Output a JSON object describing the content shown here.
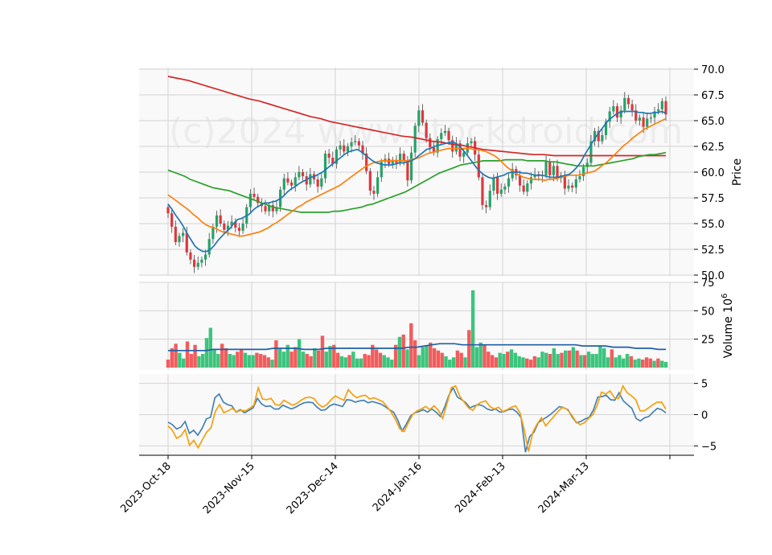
{
  "chart_data": [
    {
      "type": "candlestick",
      "panel": "price",
      "ylabel": "Price",
      "ylim": [
        50,
        70
      ],
      "yticks": [
        "50.0",
        "52.5",
        "55.0",
        "57.5",
        "60.0",
        "62.5",
        "65.0",
        "67.5",
        "70.0"
      ],
      "watermark": "(c)2024 www.stockdroid.com",
      "x_tick_labels": [
        "2023-Oct-18",
        "2023-Nov-15",
        "2023-Dec-14",
        "2024-Jan-16",
        "2024-Feb-13",
        "2024-Mar-13"
      ],
      "grid": true,
      "colors": {
        "up": "#26a269",
        "down": "#e0363d",
        "ma_fast": "#1f77b4",
        "ma_mid": "#ff7f0e",
        "ma_slow": "#2ca02c",
        "ma_long": "#d62728"
      },
      "close": [
        56.0,
        54.7,
        53.2,
        53.8,
        54.1,
        52.2,
        51.5,
        50.8,
        51.2,
        51.5,
        52.0,
        53.5,
        54.7,
        55.8,
        55.0,
        54.4,
        54.8,
        55.2,
        54.6,
        54.3,
        55.0,
        56.6,
        57.9,
        57.6,
        57.0,
        56.7,
        56.2,
        56.8,
        56.2,
        56.6,
        58.3,
        59.4,
        59.0,
        58.7,
        59.5,
        60.0,
        59.6,
        58.8,
        59.8,
        59.3,
        58.6,
        59.4,
        61.8,
        61.4,
        60.8,
        62.2,
        62.6,
        62.0,
        62.5,
        62.9,
        63.0,
        62.6,
        61.8,
        60.1,
        58.2,
        57.9,
        59.5,
        61.0,
        61.3,
        60.8,
        61.2,
        60.9,
        61.8,
        61.1,
        59.2,
        61.9,
        64.5,
        66.0,
        64.8,
        63.3,
        62.4,
        61.9,
        63.2,
        63.8,
        64.0,
        63.1,
        62.0,
        62.8,
        61.5,
        61.9,
        62.8,
        63.0,
        61.7,
        59.5,
        56.8,
        56.6,
        58.2,
        59.5,
        57.9,
        58.3,
        58.6,
        59.4,
        60.3,
        59.7,
        58.7,
        58.1,
        58.9,
        59.5,
        59.8,
        59.6,
        59.7,
        61.0,
        59.7,
        60.6,
        59.4,
        59.7,
        58.4,
        58.7,
        58.5,
        59.3,
        59.6,
        60.5,
        60.9,
        63.0,
        64.0,
        63.0,
        63.6,
        64.9,
        65.9,
        66.4,
        65.3,
        66.0,
        67.2,
        66.6,
        66.0,
        65.0,
        65.3,
        64.4,
        65.2,
        65.3,
        65.9,
        66.1,
        66.9,
        65.6
      ],
      "ma_fast": [
        56.9,
        56.4,
        55.8,
        55.3,
        54.7,
        54.0,
        53.4,
        52.8,
        52.5,
        52.3,
        52.3,
        52.5,
        52.9,
        53.4,
        53.8,
        54.2,
        54.5,
        55.0,
        55.4,
        55.5,
        55.7,
        55.9,
        56.3,
        56.6,
        56.8,
        57.0,
        57.0,
        57.1,
        57.2,
        57.4,
        57.7,
        58.1,
        58.4,
        58.6,
        58.9,
        59.1,
        59.3,
        59.5,
        59.6,
        59.8,
        60.0,
        60.3,
        60.6,
        60.9,
        61.2,
        61.5,
        61.8,
        62.0,
        62.1,
        62.2,
        62.0,
        61.7,
        61.4,
        61.1,
        60.9,
        60.8,
        60.7,
        60.7,
        60.7,
        60.8,
        60.9,
        60.9,
        61.0,
        61.1,
        61.3,
        61.6,
        61.9,
        62.2,
        62.3,
        62.5,
        62.6,
        62.7,
        62.8,
        62.9,
        62.9,
        62.7,
        62.3,
        61.9,
        61.4,
        60.9,
        60.4,
        60.0,
        59.7,
        59.5,
        59.4,
        59.5,
        59.6,
        59.7,
        59.9,
        60.0,
        60.0,
        60.0,
        59.9,
        59.9,
        59.8,
        59.7,
        59.7,
        59.7,
        59.6,
        59.5,
        59.5,
        59.5,
        59.6,
        59.7,
        59.8,
        60.1,
        60.5,
        61.0,
        61.7,
        62.3,
        62.9,
        63.5,
        64.0,
        64.5,
        65.0,
        65.3,
        65.6,
        65.8,
        65.9,
        65.9,
        65.9,
        65.9,
        65.8,
        65.8,
        65.7,
        65.7,
        65.8,
        65.8,
        65.9,
        65.7
      ],
      "ma_mid": [
        57.8,
        57.5,
        57.2,
        56.9,
        56.6,
        56.3,
        55.9,
        55.6,
        55.2,
        54.9,
        54.7,
        54.6,
        54.4,
        54.2,
        54.1,
        54.0,
        53.9,
        53.8,
        53.8,
        53.9,
        54.0,
        54.1,
        54.2,
        54.4,
        54.6,
        54.9,
        55.1,
        55.4,
        55.7,
        56.0,
        56.3,
        56.6,
        56.8,
        57.1,
        57.3,
        57.5,
        57.7,
        57.9,
        58.1,
        58.3,
        58.5,
        58.7,
        59.0,
        59.3,
        59.6,
        59.9,
        60.2,
        60.5,
        60.7,
        60.9,
        61.0,
        61.1,
        61.1,
        61.1,
        61.1,
        61.1,
        61.1,
        61.1,
        61.2,
        61.3,
        61.4,
        61.6,
        61.8,
        61.9,
        62.0,
        62.1,
        62.2,
        62.3,
        62.3,
        62.3,
        62.3,
        62.3,
        62.3,
        62.2,
        62.2,
        62.1,
        62.0,
        61.8,
        61.6,
        61.3,
        60.9,
        60.5,
        60.2,
        59.9,
        59.7,
        59.5,
        59.4,
        59.3,
        59.3,
        59.3,
        59.2,
        59.3,
        59.3,
        59.4,
        59.5,
        59.6,
        59.7,
        59.7,
        59.7,
        59.8,
        59.9,
        60.0,
        60.1,
        60.4,
        60.7,
        61.0,
        61.4,
        61.8,
        62.2,
        62.6,
        62.9,
        63.3,
        63.6,
        63.9,
        64.2,
        64.4,
        64.6,
        64.8,
        65.0,
        65.2
      ],
      "ma_slow": [
        60.2,
        60.0,
        59.8,
        59.6,
        59.3,
        59.1,
        58.9,
        58.7,
        58.5,
        58.4,
        58.3,
        58.2,
        58.0,
        57.8,
        57.6,
        57.4,
        57.2,
        57.0,
        56.8,
        56.6,
        56.5,
        56.4,
        56.3,
        56.2,
        56.1,
        56.1,
        56.1,
        56.1,
        56.1,
        56.1,
        56.2,
        56.2,
        56.3,
        56.4,
        56.5,
        56.6,
        56.8,
        56.9,
        57.1,
        57.3,
        57.5,
        57.7,
        57.9,
        58.1,
        58.4,
        58.7,
        59.0,
        59.3,
        59.6,
        59.9,
        60.1,
        60.3,
        60.5,
        60.7,
        60.8,
        60.9,
        61.0,
        61.1,
        61.1,
        61.1,
        61.1,
        61.2,
        61.2,
        61.2,
        61.2,
        61.1,
        61.1,
        61.1,
        61.1,
        61.0,
        61.0,
        60.9,
        60.8,
        60.7,
        60.6,
        60.6,
        60.6,
        60.6,
        60.7,
        60.8,
        60.9,
        61.0,
        61.1,
        61.2,
        61.3,
        61.5,
        61.6,
        61.7,
        61.7,
        61.8,
        61.9
      ],
      "ma_long": [
        69.3,
        69.1,
        68.9,
        68.6,
        68.3,
        68.0,
        67.7,
        67.4,
        67.1,
        66.9,
        66.6,
        66.3,
        66.0,
        65.7,
        65.4,
        65.2,
        64.9,
        64.7,
        64.5,
        64.3,
        64.1,
        63.9,
        63.7,
        63.5,
        63.4,
        63.2,
        63.0,
        62.9,
        62.7,
        62.6,
        62.4,
        62.2,
        62.1,
        62.0,
        61.9,
        61.8,
        61.7,
        61.7,
        61.6,
        61.6,
        61.6,
        61.6,
        61.6,
        61.6,
        61.6,
        61.6,
        61.6,
        61.6,
        61.6,
        61.6
      ]
    },
    {
      "type": "bar",
      "panel": "volume",
      "ylabel": "Volume  10^6",
      "ylim": [
        0,
        75
      ],
      "yticks": [
        "25",
        "50",
        "75"
      ],
      "values": [
        7,
        17,
        21,
        13,
        8,
        23,
        12,
        20,
        10,
        12,
        26,
        35,
        16,
        12,
        21,
        17,
        12,
        11,
        14,
        16,
        13,
        11,
        11,
        13,
        12,
        11,
        9,
        7,
        24,
        17,
        14,
        20,
        14,
        18,
        25,
        14,
        12,
        10,
        17,
        15,
        28,
        14,
        19,
        20,
        13,
        10,
        9,
        11,
        14,
        8,
        8,
        12,
        11,
        20,
        16,
        13,
        11,
        9,
        7,
        20,
        27,
        29,
        16,
        39,
        24,
        11,
        18,
        19,
        22,
        17,
        15,
        13,
        10,
        7,
        9,
        15,
        13,
        9,
        33,
        68,
        18,
        22,
        20,
        14,
        11,
        9,
        13,
        12,
        14,
        16,
        13,
        10,
        9,
        8,
        7,
        10,
        9,
        14,
        13,
        12,
        17,
        12,
        13,
        15,
        15,
        18,
        15,
        11,
        11,
        14,
        12,
        12,
        19,
        17,
        9,
        16,
        9,
        11,
        8,
        12,
        10,
        7,
        8,
        7,
        9,
        8,
        6,
        8,
        6,
        5
      ],
      "ma": [
        15,
        15,
        15,
        15,
        15,
        15,
        16,
        16,
        16,
        16,
        16,
        16,
        16,
        16,
        17,
        17,
        17,
        17,
        16,
        16,
        16,
        17,
        17,
        17,
        17,
        17,
        17,
        17,
        17,
        17,
        17,
        17,
        18,
        18,
        19,
        20,
        21,
        21,
        21,
        20,
        20,
        20,
        20,
        20,
        20,
        20,
        20,
        20,
        20,
        20,
        20,
        20,
        20,
        20,
        20,
        19,
        19,
        19,
        19,
        18,
        18,
        18,
        17,
        17,
        17,
        16,
        16
      ]
    },
    {
      "type": "line",
      "panel": "oscillator",
      "ylim": [
        -6.5,
        6.5
      ],
      "yticks": [
        "−5",
        "0",
        "5"
      ],
      "series": [
        {
          "color": "#4682b4",
          "values": [
            -1.2,
            -1.6,
            -2.3,
            -2.0,
            -1.1,
            -3.0,
            -2.5,
            -3.3,
            -2.2,
            -0.7,
            -0.4,
            2.7,
            3.3,
            2.0,
            1.6,
            1.4,
            0.4,
            0.8,
            0.3,
            0.7,
            1.1,
            2.6,
            1.7,
            1.3,
            1.4,
            0.9,
            0.9,
            1.5,
            1.2,
            0.9,
            1.2,
            1.6,
            1.9,
            2.0,
            1.9,
            1.2,
            0.7,
            0.8,
            1.4,
            1.7,
            1.5,
            1.3,
            2.4,
            2.3,
            2.0,
            2.2,
            2.3,
            1.9,
            2.1,
            1.9,
            1.7,
            1.3,
            0.8,
            0.4,
            -0.9,
            -2.6,
            -1.5,
            -0.2,
            0.3,
            0.5,
            0.8,
            0.4,
            0.9,
            0.4,
            -0.3,
            1.2,
            3.1,
            4.3,
            2.8,
            2.4,
            1.9,
            1.1,
            1.4,
            1.6,
            1.4,
            0.9,
            0.7,
            0.9,
            0.4,
            0.5,
            0.8,
            0.9,
            0.4,
            -0.5,
            -6.0,
            -3.5,
            -2.8,
            -1.3,
            -0.8,
            -0.4,
            0.1,
            0.7,
            1.3,
            1.1,
            0.8,
            -0.4,
            -1.3,
            -1.1,
            -0.7,
            -0.4,
            0.8,
            2.8,
            2.9,
            3.1,
            2.4,
            2.3,
            3.5,
            2.2,
            1.6,
            1.0,
            -0.6,
            -1.0,
            -0.5,
            -0.3,
            0.4,
            1.0,
            0.8,
            0.3
          ]
        },
        {
          "color": "#f5a00c",
          "values": [
            -1.8,
            -2.5,
            -3.8,
            -3.4,
            -2.4,
            -4.9,
            -4.1,
            -5.3,
            -4.0,
            -2.8,
            -2.1,
            0.5,
            1.6,
            0.3,
            0.6,
            1.0,
            0.4,
            0.7,
            0.6,
            1.0,
            1.5,
            4.3,
            2.5,
            2.4,
            2.6,
            1.6,
            1.5,
            2.3,
            1.9,
            1.5,
            1.8,
            2.3,
            2.7,
            2.8,
            2.6,
            1.7,
            1.2,
            1.6,
            2.4,
            3.0,
            2.6,
            2.3,
            4.0,
            3.2,
            2.7,
            3.0,
            3.1,
            2.5,
            2.7,
            2.4,
            2.1,
            1.3,
            0.4,
            -0.8,
            -2.3,
            -2.7,
            -1.3,
            0.0,
            0.6,
            0.9,
            1.3,
            0.8,
            1.4,
            0.7,
            -0.6,
            1.8,
            4.3,
            4.6,
            2.9,
            2.0,
            1.1,
            0.7,
            1.6,
            2.0,
            2.2,
            1.3,
            0.9,
            1.2,
            0.5,
            0.8,
            1.2,
            1.4,
            0.3,
            -2.4,
            -5.9,
            -2.8,
            -1.5,
            -0.5,
            -1.8,
            -1.0,
            -0.2,
            0.6,
            1.2,
            0.8,
            0.0,
            -1.1,
            -1.6,
            -1.3,
            -0.6,
            0.0,
            1.5,
            3.6,
            3.3,
            3.8,
            2.7,
            2.6,
            4.6,
            3.5,
            3.0,
            2.4,
            0.6,
            0.6,
            1.1,
            1.6,
            2.0,
            2.0,
            0.9
          ]
        }
      ]
    }
  ]
}
